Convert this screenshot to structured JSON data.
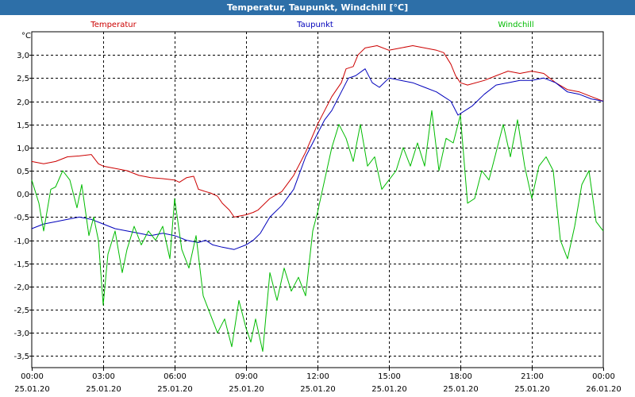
{
  "window": {
    "title": "Temperatur, Taupunkt, Windchill [°C]"
  },
  "chart_data": {
    "type": "line",
    "title": "Temperatur, Taupunkt, Windchill [°C]",
    "ylabel": "°C",
    "xlabel": "",
    "ylim": [
      -3.75,
      3.5
    ],
    "xlim": [
      0,
      24
    ],
    "yticks": [
      3.0,
      2.5,
      2.0,
      1.5,
      1.0,
      0.5,
      0.0,
      -0.5,
      -1.0,
      -1.5,
      -2.0,
      -2.5,
      -3.0,
      -3.5
    ],
    "ytick_labels": [
      "3,0",
      "2,5",
      "2,0",
      "1,5",
      "1,0",
      "0,5",
      "0,0",
      "-0,5",
      "-1,0",
      "-1,5",
      "-2,0",
      "-2,5",
      "-3,0",
      "-3,5"
    ],
    "xticks": [
      0,
      3,
      6,
      9,
      12,
      15,
      18,
      21,
      24
    ],
    "xtick_times": [
      "00:00",
      "03:00",
      "06:00",
      "09:00",
      "12:00",
      "15:00",
      "18:00",
      "21:00",
      "00:00"
    ],
    "xtick_dates": [
      "25.01.20",
      "25.01.20",
      "25.01.20",
      "25.01.20",
      "25.01.20",
      "25.01.20",
      "25.01.20",
      "25.01.20",
      "26.01.20"
    ],
    "grid": true,
    "legend_position": "top",
    "series": [
      {
        "name": "Temperatur",
        "color": "#cc0000",
        "x": [
          0,
          0.5,
          1,
          1.5,
          2,
          2.5,
          2.8,
          3,
          3.5,
          4,
          4.5,
          5,
          5.5,
          6,
          6.2,
          6.5,
          6.8,
          7,
          7.3,
          7.5,
          7.8,
          8,
          8.3,
          8.5,
          9,
          9.3,
          9.5,
          10,
          10.5,
          11,
          11.5,
          12,
          12.3,
          12.6,
          13,
          13.2,
          13.5,
          13.7,
          14,
          14.5,
          15,
          15.5,
          16,
          16.5,
          17,
          17.3,
          17.6,
          17.8,
          18,
          18.3,
          19,
          19.5,
          20,
          20.5,
          21,
          21.5,
          22,
          22.5,
          23,
          23.5,
          24
        ],
        "values": [
          0.7,
          0.65,
          0.7,
          0.8,
          0.82,
          0.85,
          0.65,
          0.6,
          0.55,
          0.5,
          0.4,
          0.35,
          0.33,
          0.3,
          0.25,
          0.35,
          0.38,
          0.1,
          0.05,
          0.02,
          -0.05,
          -0.2,
          -0.35,
          -0.5,
          -0.45,
          -0.4,
          -0.35,
          -0.1,
          0.05,
          0.4,
          0.9,
          1.5,
          1.8,
          2.1,
          2.4,
          2.7,
          2.75,
          3.0,
          3.15,
          3.2,
          3.1,
          3.15,
          3.2,
          3.15,
          3.1,
          3.05,
          2.8,
          2.55,
          2.4,
          2.35,
          2.45,
          2.55,
          2.65,
          2.6,
          2.65,
          2.6,
          2.4,
          2.25,
          2.2,
          2.1,
          2.0
        ]
      },
      {
        "name": "Taupunkt",
        "color": "#0000bb",
        "x": [
          0,
          0.5,
          1,
          1.5,
          2,
          2.5,
          3,
          3.5,
          4,
          4.5,
          5,
          5.5,
          6,
          6.5,
          7,
          7.3,
          7.6,
          8,
          8.5,
          9,
          9.3,
          9.6,
          10,
          10.5,
          11,
          11.5,
          12,
          12.3,
          12.6,
          13,
          13.3,
          13.6,
          14,
          14.3,
          14.6,
          15,
          15.5,
          16,
          16.5,
          17,
          17.3,
          17.6,
          17.9,
          18.2,
          18.5,
          19,
          19.5,
          20,
          20.5,
          21,
          21.5,
          22,
          22.5,
          23,
          23.5,
          24
        ],
        "values": [
          -0.75,
          -0.65,
          -0.6,
          -0.55,
          -0.5,
          -0.55,
          -0.65,
          -0.75,
          -0.8,
          -0.85,
          -0.9,
          -0.85,
          -0.9,
          -1.0,
          -1.05,
          -1.0,
          -1.1,
          -1.15,
          -1.2,
          -1.1,
          -1.0,
          -0.85,
          -0.5,
          -0.25,
          0.1,
          0.8,
          1.3,
          1.6,
          1.8,
          2.2,
          2.5,
          2.55,
          2.7,
          2.4,
          2.3,
          2.5,
          2.45,
          2.4,
          2.3,
          2.2,
          2.1,
          2.0,
          1.7,
          1.8,
          1.9,
          2.15,
          2.35,
          2.4,
          2.45,
          2.45,
          2.5,
          2.4,
          2.2,
          2.15,
          2.05,
          2.0
        ]
      },
      {
        "name": "Windchill",
        "color": "#00bb00",
        "x": [
          0,
          0.3,
          0.5,
          0.8,
          1,
          1.3,
          1.6,
          1.9,
          2.1,
          2.4,
          2.6,
          2.8,
          3,
          3.2,
          3.5,
          3.8,
          4,
          4.3,
          4.6,
          4.9,
          5.2,
          5.5,
          5.8,
          6,
          6.3,
          6.6,
          6.9,
          7.2,
          7.5,
          7.8,
          8.1,
          8.4,
          8.7,
          9,
          9.2,
          9.4,
          9.7,
          10,
          10.3,
          10.6,
          10.9,
          11.2,
          11.5,
          11.8,
          12,
          12.3,
          12.6,
          12.9,
          13.2,
          13.5,
          13.8,
          14.1,
          14.4,
          14.7,
          15,
          15.3,
          15.6,
          15.9,
          16.2,
          16.5,
          16.8,
          17.1,
          17.4,
          17.7,
          18,
          18.3,
          18.6,
          18.9,
          19.2,
          19.5,
          19.8,
          20.1,
          20.4,
          20.7,
          21,
          21.3,
          21.6,
          21.9,
          22.2,
          22.5,
          22.8,
          23.1,
          23.4,
          23.7,
          24
        ],
        "values": [
          0.3,
          -0.2,
          -0.8,
          0.1,
          0.15,
          0.5,
          0.3,
          -0.3,
          0.2,
          -0.9,
          -0.5,
          -1.0,
          -2.4,
          -1.3,
          -0.8,
          -1.7,
          -1.2,
          -0.7,
          -1.1,
          -0.8,
          -1.0,
          -0.7,
          -1.4,
          -0.1,
          -1.2,
          -1.6,
          -0.9,
          -2.2,
          -2.6,
          -3.0,
          -2.7,
          -3.3,
          -2.3,
          -2.9,
          -3.2,
          -2.7,
          -3.4,
          -1.7,
          -2.3,
          -1.6,
          -2.1,
          -1.8,
          -2.2,
          -0.8,
          -0.4,
          0.3,
          1.0,
          1.5,
          1.2,
          0.7,
          1.5,
          0.6,
          0.8,
          0.1,
          0.3,
          0.5,
          1.0,
          0.6,
          1.1,
          0.6,
          1.8,
          0.5,
          1.2,
          1.1,
          1.7,
          -0.2,
          -0.1,
          0.5,
          0.3,
          0.9,
          1.5,
          0.8,
          1.6,
          0.6,
          -0.1,
          0.6,
          0.8,
          0.5,
          -1.0,
          -1.4,
          -0.7,
          0.2,
          0.5,
          -0.6,
          -0.8
        ]
      }
    ]
  }
}
